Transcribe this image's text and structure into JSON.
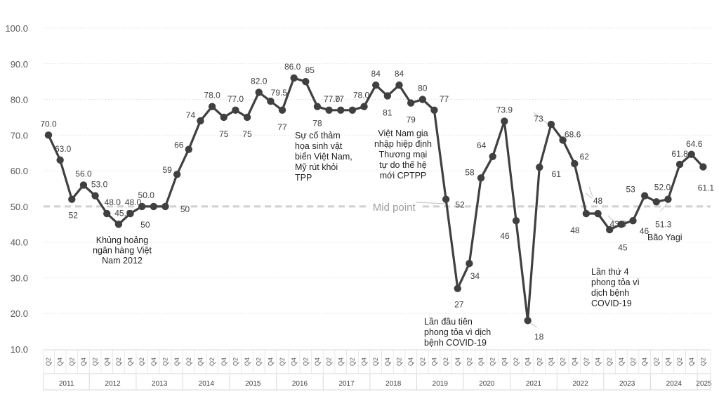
{
  "chart_data": {
    "type": "line",
    "title": "",
    "xlabel": "",
    "ylabel": "",
    "ylim": [
      10,
      100
    ],
    "yticks": [
      "10.0",
      "20.0",
      "30.0",
      "40.0",
      "50.0",
      "60.0",
      "70.0",
      "80.0",
      "90.0",
      "100.0"
    ],
    "grid": "horizontal dotted",
    "series_color": "#404040",
    "reference_line": {
      "value": 50,
      "label": "Mid point",
      "color": "#d0d0d0"
    },
    "quarter_labels": [
      "Q2",
      "Q4"
    ],
    "years": [
      "2011",
      "2012",
      "2013",
      "2014",
      "2015",
      "2016",
      "2017",
      "2018",
      "2019",
      "2020",
      "2021",
      "2022",
      "2023",
      "2024",
      "2025"
    ],
    "points": [
      {
        "y": 70.0,
        "label": "70.0"
      },
      {
        "y": 63.0,
        "label": "63.0"
      },
      {
        "y": 52.0,
        "label": "52"
      },
      {
        "y": 56.0,
        "label": "56.0"
      },
      {
        "y": 53.0,
        "label": "53.0"
      },
      {
        "y": 48.0,
        "label": "48.0"
      },
      {
        "y": 45.0,
        "label": "45.0"
      },
      {
        "y": 48.0,
        "label": "48.0"
      },
      {
        "y": 50.0,
        "label": "50.0"
      },
      {
        "y": 50.0,
        "label": "50"
      },
      {
        "y": 50.0,
        "label": "50"
      },
      {
        "y": 59.0,
        "label": "59"
      },
      {
        "y": 66.0,
        "label": "66"
      },
      {
        "y": 74.0,
        "label": "74"
      },
      {
        "y": 78.0,
        "label": "78.0"
      },
      {
        "y": 75.0,
        "label": "75"
      },
      {
        "y": 77.0,
        "label": "77.0"
      },
      {
        "y": 75.0,
        "label": "75"
      },
      {
        "y": 82.0,
        "label": "82.0"
      },
      {
        "y": 79.5,
        "label": "79.5"
      },
      {
        "y": 77.0,
        "label": "77"
      },
      {
        "y": 86.0,
        "label": "86.0"
      },
      {
        "y": 85.0,
        "label": "85"
      },
      {
        "y": 78.0,
        "label": "78"
      },
      {
        "y": 77.0,
        "label": "77.0"
      },
      {
        "y": 77.0,
        "label": "77"
      },
      {
        "y": 77.0,
        "label": ""
      },
      {
        "y": 78.0,
        "label": "78.0"
      },
      {
        "y": 84.0,
        "label": "84"
      },
      {
        "y": 81.0,
        "label": "81"
      },
      {
        "y": 84.0,
        "label": "84"
      },
      {
        "y": 79.0,
        "label": "79"
      },
      {
        "y": 80.0,
        "label": "80"
      },
      {
        "y": 77.0,
        "label": "77"
      },
      {
        "y": 52.0,
        "label": "52"
      },
      {
        "y": 27.0,
        "label": "27"
      },
      {
        "y": 34.0,
        "label": "34"
      },
      {
        "y": 58.0,
        "label": "58"
      },
      {
        "y": 64.0,
        "label": "64"
      },
      {
        "y": 73.9,
        "label": "73.9"
      },
      {
        "y": 46.0,
        "label": "46"
      },
      {
        "y": 18.0,
        "label": "18"
      },
      {
        "y": 61.0,
        "label": "61"
      },
      {
        "y": 73.0,
        "label": "73"
      },
      {
        "y": 68.6,
        "label": "68.6"
      },
      {
        "y": 62.0,
        "label": "62"
      },
      {
        "y": 48.0,
        "label": "48"
      },
      {
        "y": 48.0,
        "label": "48"
      },
      {
        "y": 43.5,
        "label": "43.5"
      },
      {
        "y": 45.0,
        "label": "45"
      },
      {
        "y": 46.0,
        "label": "46"
      },
      {
        "y": 53.0,
        "label": "53"
      },
      {
        "y": 51.3,
        "label": "51.3"
      },
      {
        "y": 52.0,
        "label": "52.0"
      },
      {
        "y": 61.8,
        "label": "61.8"
      },
      {
        "y": 64.6,
        "label": "64.6"
      },
      {
        "y": 61.1,
        "label": "61.1"
      }
    ],
    "annotations": [
      {
        "lines": [
          "Khủng hoảng",
          "ngân hàng Việt",
          "Nam 2012"
        ]
      },
      {
        "lines": [
          "Sự cố thảm",
          "họa sinh vật",
          "biển Việt Nam,",
          "Mỹ rút khỏi",
          "TPP"
        ]
      },
      {
        "lines": [
          "Việt Nam gia",
          "nhập hiệp định",
          "Thương mại",
          "tự do thế hệ",
          "mới CPTPP"
        ]
      },
      {
        "lines": [
          "Lần đầu tiên",
          "phong tỏa vì dịch",
          "bệnh COVID-19"
        ]
      },
      {
        "lines": [
          "Lần thứ 4",
          "phong tỏa vì",
          "dịch bệnh",
          "COVID-19"
        ]
      },
      {
        "lines": [
          "Bão Yagi"
        ]
      }
    ]
  }
}
